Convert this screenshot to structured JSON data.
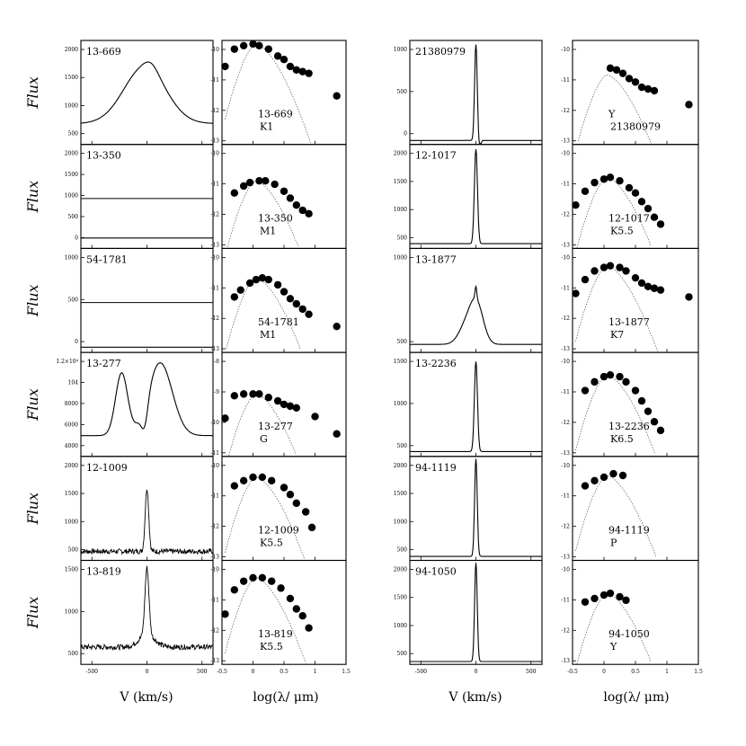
{
  "chart_data": {
    "type": "grid-of-spectra-and-seds",
    "ylabel": "Flux",
    "xlabel_velocity": "V (km/s)",
    "xlabel_sed": "log(λ/ μm)",
    "velocity_xticks": [
      "-500",
      "0",
      "500"
    ],
    "sed_xticks": [
      "-0.5",
      "0",
      "0.5",
      "1",
      "1.5"
    ],
    "sed_xlim": [
      -0.5,
      1.5
    ],
    "sed_ylim": [
      -13,
      -10
    ],
    "velocity_xlim": [
      -600,
      600
    ],
    "rows": [
      {
        "spec1": {
          "id": "13-669",
          "kind": "broad",
          "ylim": [
            0,
            2000
          ],
          "yticks": [
            "500",
            "1000",
            "1500",
            "2000"
          ],
          "peak": 1550,
          "width": 190,
          "base": 400
        },
        "sed1": {
          "id": "13-669",
          "sptype": "K1",
          "ylim": [
            -13,
            -10
          ],
          "yticks": [
            "-10",
            "-11",
            "-12",
            "-13"
          ],
          "points": [
            [
              -0.45,
              -10.75
            ],
            [
              -0.3,
              -10.25
            ],
            [
              -0.15,
              -10.15
            ],
            [
              0.0,
              -10.1
            ],
            [
              0.1,
              -10.15
            ],
            [
              0.25,
              -10.25
            ],
            [
              0.4,
              -10.45
            ],
            [
              0.5,
              -10.55
            ],
            [
              0.6,
              -10.75
            ],
            [
              0.7,
              -10.85
            ],
            [
              0.8,
              -10.9
            ],
            [
              0.9,
              -10.95
            ],
            [
              1.35,
              -11.6
            ]
          ],
          "bb_peak": -10.1
        },
        "spec2": {
          "id": "21380979",
          "kind": "narrow",
          "ylim": [
            0,
            1300
          ],
          "yticks": [
            "0",
            "500",
            "1000"
          ],
          "peak": 1250,
          "width": 12,
          "base": 50,
          "absorb": true
        },
        "sed2": {
          "id": "21380979",
          "sptype": "Y",
          "ylim": [
            -13,
            -10
          ],
          "yticks": [
            "-10",
            "-11",
            "-12",
            "-13"
          ],
          "points": [
            [
              0.1,
              -10.8
            ],
            [
              0.2,
              -10.85
            ],
            [
              0.3,
              -10.95
            ],
            [
              0.4,
              -11.1
            ],
            [
              0.5,
              -11.2
            ],
            [
              0.6,
              -11.35
            ],
            [
              0.7,
              -11.4
            ],
            [
              0.8,
              -11.45
            ],
            [
              1.35,
              -11.85
            ]
          ],
          "bb_peak": -11.0
        }
      },
      {
        "spec1": {
          "id": "13-350",
          "kind": "double",
          "ylim": [
            0,
            2000
          ],
          "yticks": [
            "0",
            "500",
            "1000",
            "1500",
            "2000"
          ],
          "peak": 1300,
          "width": 10,
          "base": 200
        },
        "sed1": {
          "id": "13-350",
          "sptype": "M1",
          "ylim": [
            -13,
            -10
          ],
          "yticks": [
            "-10",
            "-11",
            "-12",
            "-13"
          ],
          "points": [
            [
              -0.3,
              -11.4
            ],
            [
              -0.15,
              -11.2
            ],
            [
              -0.05,
              -11.1
            ],
            [
              0.1,
              -11.05
            ],
            [
              0.2,
              -11.05
            ],
            [
              0.35,
              -11.15
            ],
            [
              0.5,
              -11.35
            ],
            [
              0.6,
              -11.55
            ],
            [
              0.7,
              -11.75
            ],
            [
              0.8,
              -11.9
            ],
            [
              0.9,
              -12.0
            ]
          ],
          "bb_peak": -11.05
        },
        "spec2": {
          "id": "12-1017",
          "kind": "narrow",
          "ylim": [
            0,
            2200
          ],
          "yticks": [
            "500",
            "1000",
            "1500",
            "2000"
          ],
          "peak": 2100,
          "width": 14,
          "base": 100
        },
        "sed2": {
          "id": "12-1017",
          "sptype": "K5.5",
          "ylim": [
            -13,
            -10
          ],
          "yticks": [
            "-10",
            "-11",
            "-12",
            "-13"
          ],
          "points": [
            [
              -0.45,
              -11.75
            ],
            [
              -0.3,
              -11.35
            ],
            [
              -0.15,
              -11.1
            ],
            [
              0.0,
              -11.0
            ],
            [
              0.1,
              -10.95
            ],
            [
              0.25,
              -11.05
            ],
            [
              0.4,
              -11.25
            ],
            [
              0.5,
              -11.4
            ],
            [
              0.6,
              -11.65
            ],
            [
              0.7,
              -11.85
            ],
            [
              0.8,
              -12.1
            ],
            [
              0.9,
              -12.3
            ]
          ],
          "bb_peak": -10.95
        }
      },
      {
        "spec1": {
          "id": "54-1781",
          "kind": "double",
          "ylim": [
            0,
            1000
          ],
          "yticks": [
            "0",
            "500",
            "1000"
          ],
          "peak": 900,
          "width": 10,
          "base": 50
        },
        "sed1": {
          "id": "54-1781",
          "sptype": "M1",
          "ylim": [
            -13,
            -10
          ],
          "yticks": [
            "-10",
            "-11",
            "-12",
            "-13"
          ],
          "points": [
            [
              -0.3,
              -11.4
            ],
            [
              -0.2,
              -11.2
            ],
            [
              -0.05,
              -11.0
            ],
            [
              0.05,
              -10.9
            ],
            [
              0.15,
              -10.85
            ],
            [
              0.25,
              -10.9
            ],
            [
              0.4,
              -11.05
            ],
            [
              0.5,
              -11.25
            ],
            [
              0.6,
              -11.45
            ],
            [
              0.7,
              -11.6
            ],
            [
              0.8,
              -11.75
            ],
            [
              0.9,
              -11.9
            ],
            [
              1.35,
              -12.25
            ]
          ],
          "bb_peak": -10.85
        },
        "spec2": {
          "id": "13-1877",
          "kind": "doublebroad",
          "ylim": [
            0,
            1300
          ],
          "yticks": [
            "500",
            "1000"
          ],
          "peak": 600,
          "width": 80,
          "base": 100
        },
        "sed2": {
          "id": "13-1877",
          "sptype": "K7",
          "ylim": [
            -13,
            -10
          ],
          "yticks": [
            "-10",
            "-11",
            "-12",
            "-13"
          ],
          "points": [
            [
              -0.45,
              -11.3
            ],
            [
              -0.3,
              -10.9
            ],
            [
              -0.15,
              -10.65
            ],
            [
              0.0,
              -10.55
            ],
            [
              0.1,
              -10.5
            ],
            [
              0.25,
              -10.55
            ],
            [
              0.35,
              -10.65
            ],
            [
              0.5,
              -10.85
            ],
            [
              0.6,
              -11.0
            ],
            [
              0.7,
              -11.1
            ],
            [
              0.8,
              -11.15
            ],
            [
              0.9,
              -11.2
            ],
            [
              1.35,
              -11.4
            ]
          ],
          "bb_peak": -10.5
        }
      },
      {
        "spec1": {
          "id": "13-277",
          "kind": "pcygni",
          "ylim": [
            2000,
            12000
          ],
          "yticks": [
            "4000",
            "6000",
            "8000",
            "104",
            "1.2×10⁴"
          ],
          "peak": 11000,
          "width": 170,
          "base": 4000
        },
        "sed1": {
          "id": "13-277",
          "sptype": "G",
          "ylim": [
            -11,
            -8
          ],
          "yticks": [
            "-8",
            "-9",
            "-10",
            "-11"
          ],
          "points": [
            [
              -0.45,
              -9.9
            ],
            [
              -0.3,
              -9.25
            ],
            [
              -0.15,
              -9.2
            ],
            [
              0.0,
              -9.2
            ],
            [
              0.1,
              -9.2
            ],
            [
              0.25,
              -9.3
            ],
            [
              0.4,
              -9.4
            ],
            [
              0.5,
              -9.5
            ],
            [
              0.6,
              -9.55
            ],
            [
              0.7,
              -9.6
            ],
            [
              1.0,
              -9.85
            ],
            [
              1.35,
              -10.35
            ]
          ],
          "bb_peak": -9.2
        },
        "spec2": {
          "id": "13-2236",
          "kind": "narrow",
          "ylim": [
            0,
            1700
          ],
          "yticks": [
            "500",
            "1000",
            "1500"
          ],
          "peak": 1550,
          "width": 14,
          "base": 80
        },
        "sed2": {
          "id": "13-2236",
          "sptype": "K6.5",
          "ylim": [
            -13,
            -10
          ],
          "yticks": [
            "-10",
            "-11",
            "-12",
            "-13"
          ],
          "points": [
            [
              -0.3,
              -11.1
            ],
            [
              -0.15,
              -10.85
            ],
            [
              0.0,
              -10.7
            ],
            [
              0.1,
              -10.65
            ],
            [
              0.25,
              -10.7
            ],
            [
              0.35,
              -10.85
            ],
            [
              0.5,
              -11.1
            ],
            [
              0.6,
              -11.4
            ],
            [
              0.7,
              -11.7
            ],
            [
              0.8,
              -12.0
            ],
            [
              0.9,
              -12.25
            ]
          ],
          "bb_peak": -10.65
        }
      },
      {
        "spec1": {
          "id": "12-1009",
          "kind": "narrow",
          "ylim": [
            0,
            2300
          ],
          "yticks": [
            "500",
            "1000",
            "1500",
            "2000"
          ],
          "peak": 1600,
          "width": 16,
          "base": 200,
          "noisy": true
        },
        "sed1": {
          "id": "12-1009",
          "sptype": "K5.5",
          "ylim": [
            -13,
            -10
          ],
          "yticks": [
            "-10",
            "-11",
            "-12",
            "-13"
          ],
          "points": [
            [
              -0.3,
              -10.85
            ],
            [
              -0.15,
              -10.7
            ],
            [
              0.0,
              -10.6
            ],
            [
              0.15,
              -10.6
            ],
            [
              0.3,
              -10.7
            ],
            [
              0.5,
              -10.9
            ],
            [
              0.6,
              -11.1
            ],
            [
              0.7,
              -11.35
            ],
            [
              0.85,
              -11.6
            ],
            [
              0.95,
              -12.05
            ]
          ],
          "bb_peak": -10.6
        },
        "spec2": {
          "id": "94-1119",
          "kind": "narrow",
          "ylim": [
            0,
            2100
          ],
          "yticks": [
            "500",
            "1000",
            "1500",
            "2000"
          ],
          "peak": 2050,
          "width": 12,
          "base": 80
        },
        "sed2": {
          "id": "94-1119",
          "sptype": "P",
          "ylim": [
            -13,
            -10
          ],
          "yticks": [
            "-10",
            "-11",
            "-12",
            "-13"
          ],
          "points": [
            [
              -0.3,
              -10.85
            ],
            [
              -0.15,
              -10.7
            ],
            [
              0.0,
              -10.6
            ],
            [
              0.15,
              -10.5
            ],
            [
              0.3,
              -10.55
            ]
          ],
          "bb_peak": -10.55
        }
      },
      {
        "spec1": {
          "id": "13-819",
          "kind": "narrow",
          "ylim": [
            0,
            1800
          ],
          "yticks": [
            "500",
            "1000",
            "1500"
          ],
          "peak": 1450,
          "width": 18,
          "base": 300,
          "noisy": true,
          "wings": true
        },
        "sed1": {
          "id": "13-819",
          "sptype": "K5.5",
          "ylim": [
            -13,
            -10
          ],
          "yticks": [
            "-10",
            "-11",
            "-12",
            "-13"
          ],
          "points": [
            [
              -0.45,
              -11.55
            ],
            [
              -0.3,
              -10.85
            ],
            [
              -0.15,
              -10.6
            ],
            [
              0.0,
              -10.5
            ],
            [
              0.15,
              -10.5
            ],
            [
              0.3,
              -10.6
            ],
            [
              0.45,
              -10.8
            ],
            [
              0.6,
              -11.1
            ],
            [
              0.7,
              -11.4
            ],
            [
              0.8,
              -11.6
            ],
            [
              0.9,
              -11.95
            ]
          ],
          "bb_peak": -10.5
        },
        "spec2": {
          "id": "94-1050",
          "kind": "narrow",
          "ylim": [
            0,
            2200
          ],
          "yticks": [
            "500",
            "1000",
            "1500",
            "2000"
          ],
          "peak": 2150,
          "width": 12,
          "base": 60
        },
        "sed2": {
          "id": "94-1050",
          "sptype": "Y",
          "ylim": [
            -13,
            -10
          ],
          "yticks": [
            "-10",
            "-11",
            "-12",
            "-13"
          ],
          "points": [
            [
              -0.3,
              -11.2
            ],
            [
              -0.15,
              -11.1
            ],
            [
              0.0,
              -11.0
            ],
            [
              0.1,
              -10.95
            ],
            [
              0.25,
              -11.05
            ],
            [
              0.35,
              -11.15
            ]
          ],
          "bb_peak": -10.95
        }
      }
    ]
  }
}
